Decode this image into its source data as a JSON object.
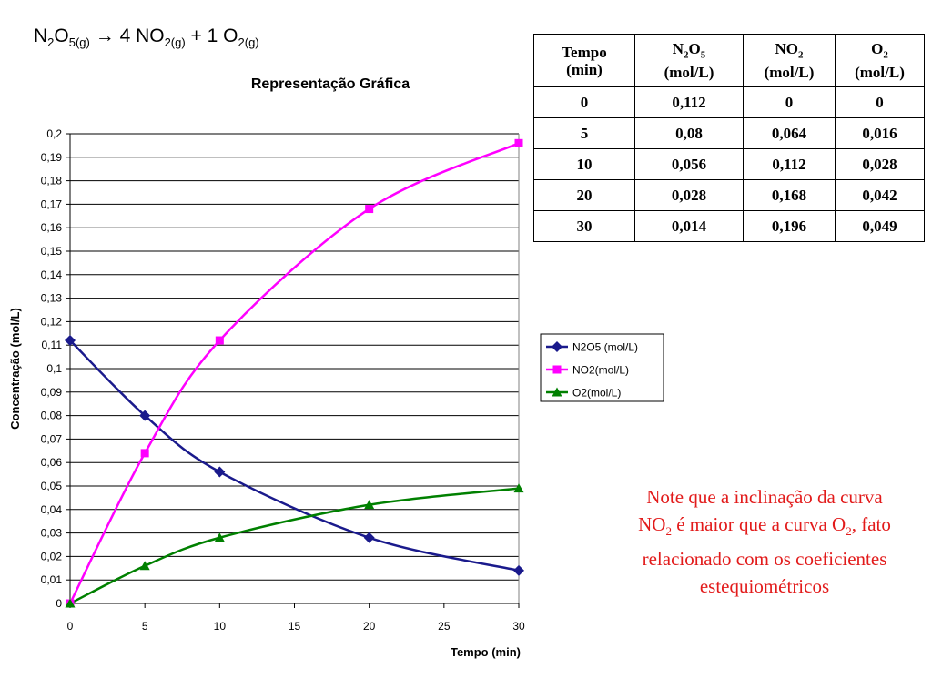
{
  "equation": {
    "reactant": "N",
    "reactant_sub1": "2",
    "reactant_o": "O",
    "reactant_sub2": "5(g)",
    "arrow": "→",
    "product1": "4 NO",
    "product1_sub": "2(g)",
    "plus": "+",
    "product2": "1 O",
    "product2_sub": "2(g)"
  },
  "table": {
    "headers": [
      {
        "line1": "Tempo",
        "sub": "",
        "line1b": "",
        "line2": "(min)"
      },
      {
        "line1": "N",
        "sub": "2",
        "line1b": "O",
        "sub2": "5",
        "line2": "(mol/L)"
      },
      {
        "line1": "NO",
        "sub": "2",
        "line1b": "",
        "line2": "(mol/L)"
      },
      {
        "line1": "O",
        "sub": "2",
        "line1b": "",
        "line2": "(mol/L)"
      }
    ],
    "rows": [
      [
        "0",
        "0,112",
        "0",
        "0"
      ],
      [
        "5",
        "0,08",
        "0,064",
        "0,016"
      ],
      [
        "10",
        "0,056",
        "0,112",
        "0,028"
      ],
      [
        "20",
        "0,028",
        "0,168",
        "0,042"
      ],
      [
        "30",
        "0,014",
        "0,196",
        "0,049"
      ]
    ]
  },
  "note": {
    "part1": "Note que a inclinação da curva NO",
    "sub1": "2",
    "part2": " é maior que a curva O",
    "sub2": "2",
    "part3": ", fato relacionado com os coeficientes estequiométricos"
  },
  "chart_data": {
    "type": "line",
    "title": "Representação Gráfica",
    "xlabel": "Tempo (min)",
    "ylabel": "Concentração (mol/L)",
    "xlim": [
      0,
      30
    ],
    "ylim": [
      0,
      0.2
    ],
    "x_ticks": [
      "0",
      "5",
      "10",
      "15",
      "20",
      "25",
      "30"
    ],
    "x_tick_values": [
      0,
      5,
      10,
      15,
      20,
      25,
      30
    ],
    "y_ticks": [
      "0",
      "0,01",
      "0,02",
      "0,03",
      "0,04",
      "0,05",
      "0,06",
      "0,07",
      "0,08",
      "0,09",
      "0,1",
      "0,11",
      "0,12",
      "0,13",
      "0,14",
      "0,15",
      "0,16",
      "0,17",
      "0,18",
      "0,19",
      "0,2"
    ],
    "y_tick_values": [
      0,
      0.01,
      0.02,
      0.03,
      0.04,
      0.05,
      0.06,
      0.07,
      0.08,
      0.09,
      0.1,
      0.11,
      0.12,
      0.13,
      0.14,
      0.15,
      0.16,
      0.17,
      0.18,
      0.19,
      0.2
    ],
    "grid": "horizontal",
    "legend_position": "right",
    "x": [
      0,
      5,
      10,
      20,
      30
    ],
    "series": [
      {
        "name": "N2O5 (mol/L)",
        "values": [
          0.112,
          0.08,
          0.056,
          0.028,
          0.014
        ],
        "color": "#1a1a8c",
        "marker": "diamond"
      },
      {
        "name": "NO2(mol/L)",
        "values": [
          0,
          0.064,
          0.112,
          0.168,
          0.196
        ],
        "color": "#ff00ff",
        "marker": "square"
      },
      {
        "name": "O2(mol/L)",
        "values": [
          0,
          0.016,
          0.028,
          0.042,
          0.049
        ],
        "color": "#008000",
        "marker": "triangle"
      }
    ]
  }
}
